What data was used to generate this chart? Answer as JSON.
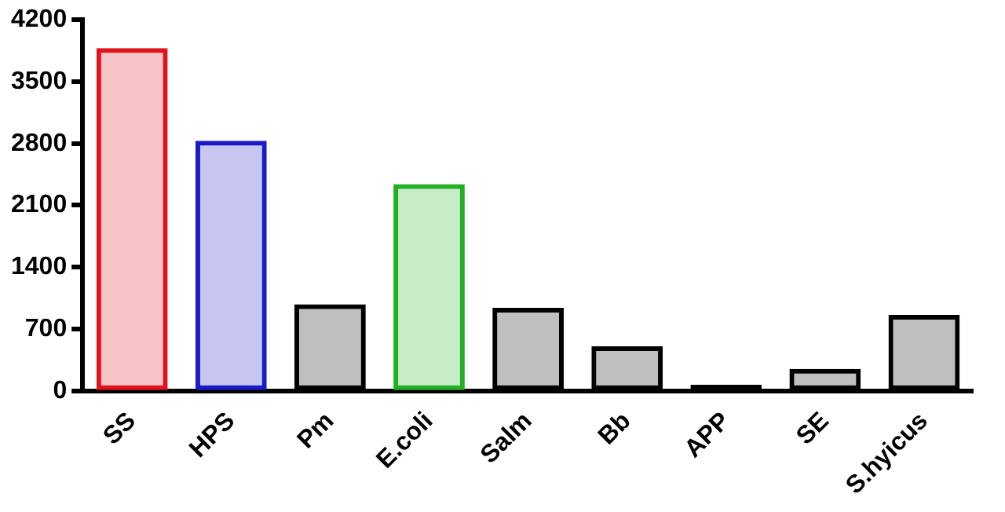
{
  "chart_data": {
    "type": "bar",
    "categories": [
      "SS",
      "HPS",
      "Pm",
      "E.coli",
      "Salm",
      "Bb",
      "APP",
      "SE",
      "S.hyicus"
    ],
    "values": [
      3880,
      2830,
      980,
      2340,
      940,
      505,
      70,
      250,
      860
    ],
    "colors": [
      "#e0141e",
      "#1a1ac8",
      "#000000",
      "#22b022",
      "#000000",
      "#000000",
      "#000000",
      "#000000",
      "#000000"
    ],
    "ylim": [
      0,
      4200
    ],
    "yticks": [
      0,
      700,
      1400,
      2100,
      2800,
      3500,
      4200
    ],
    "grid": false,
    "legend": false
  }
}
